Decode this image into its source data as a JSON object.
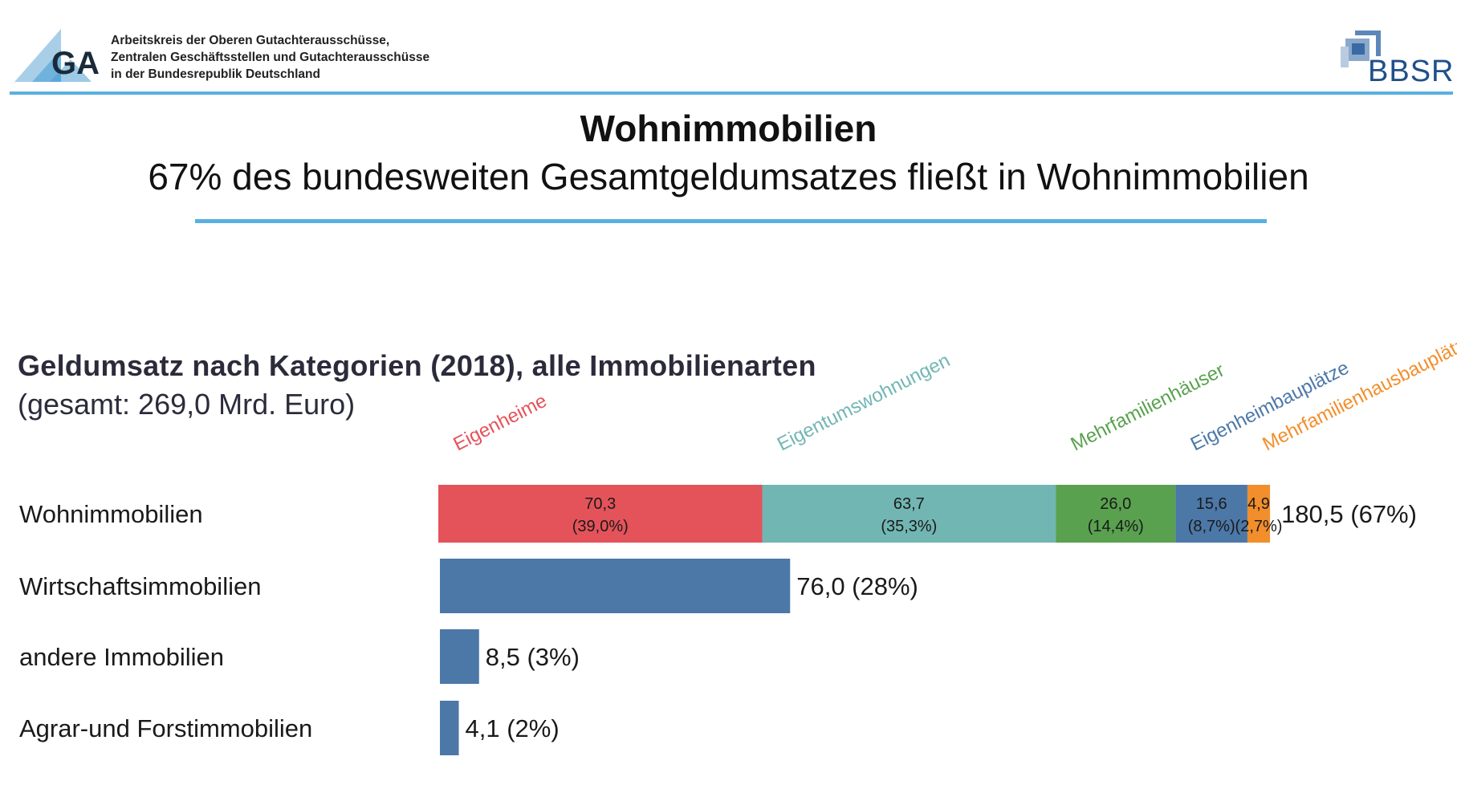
{
  "header": {
    "org_lines": [
      "Arbeitskreis der Oberen Gutachterausschüsse,",
      "Zentralen Geschäftsstellen und Gutachterausschüsse",
      "in der Bundesrepublik Deutschland"
    ],
    "logo_text": "GA",
    "bbsr_text": "BBSR"
  },
  "title": "Wohnimmobilien",
  "subtitle": "67% des bundesweiten Gesamtgeldumsatzes fließt in Wohnimmobilien",
  "colors": {
    "accent_line": "#5ab0e0",
    "eigenheime": "#e4535a",
    "eigentumswohnungen": "#72b6b3",
    "mehrfamilienhaeuser": "#59a14f",
    "eigenheimbauplaetze": "#4c78a8",
    "mehrfamilienhausbauplaetze": "#f28e2b",
    "bar_default": "#4c78a8"
  },
  "chart_data": {
    "type": "bar",
    "orientation": "horizontal",
    "title": "Geldumsatz nach Kategorien (2018), alle Immobilienarten",
    "subtitle": "(gesamt: 269,0 Mrd. Euro)",
    "categories": [
      "Wohnimmobilien",
      "Wirtschaftsimmobilien",
      "andere  Immobilien",
      "Agrar-und Forstimmobilien"
    ],
    "values": [
      180.5,
      76.0,
      8.5,
      4.1
    ],
    "value_labels": [
      "180,5 (67%)",
      "76,0 (28%)",
      "8,5 (3%)",
      "4,1 (2%)"
    ],
    "stacked_row": 0,
    "segments": [
      {
        "name": "Eigenheime",
        "value": 70.3,
        "label": "70,3",
        "share": "(39,0%)",
        "color": "#e4535a"
      },
      {
        "name": "Eigentumswohnungen",
        "value": 63.7,
        "label": "63,7",
        "share": "(35,3%)",
        "color": "#72b6b3"
      },
      {
        "name": "Mehrfamilienhäuser",
        "value": 26.0,
        "label": "26,0",
        "share": "(14,4%)",
        "color": "#59a14f"
      },
      {
        "name": "Eigenheimbauplätze",
        "value": 15.6,
        "label": "15,6",
        "share": "(8,7%)",
        "color": "#4c78a8"
      },
      {
        "name": "Mehrfamilienhausbauplätze",
        "value": 4.9,
        "label": "4,9",
        "share": "(2,7%)",
        "color": "#f28e2b"
      }
    ],
    "grid": false,
    "legend": "rotated labels above stacked bar"
  }
}
